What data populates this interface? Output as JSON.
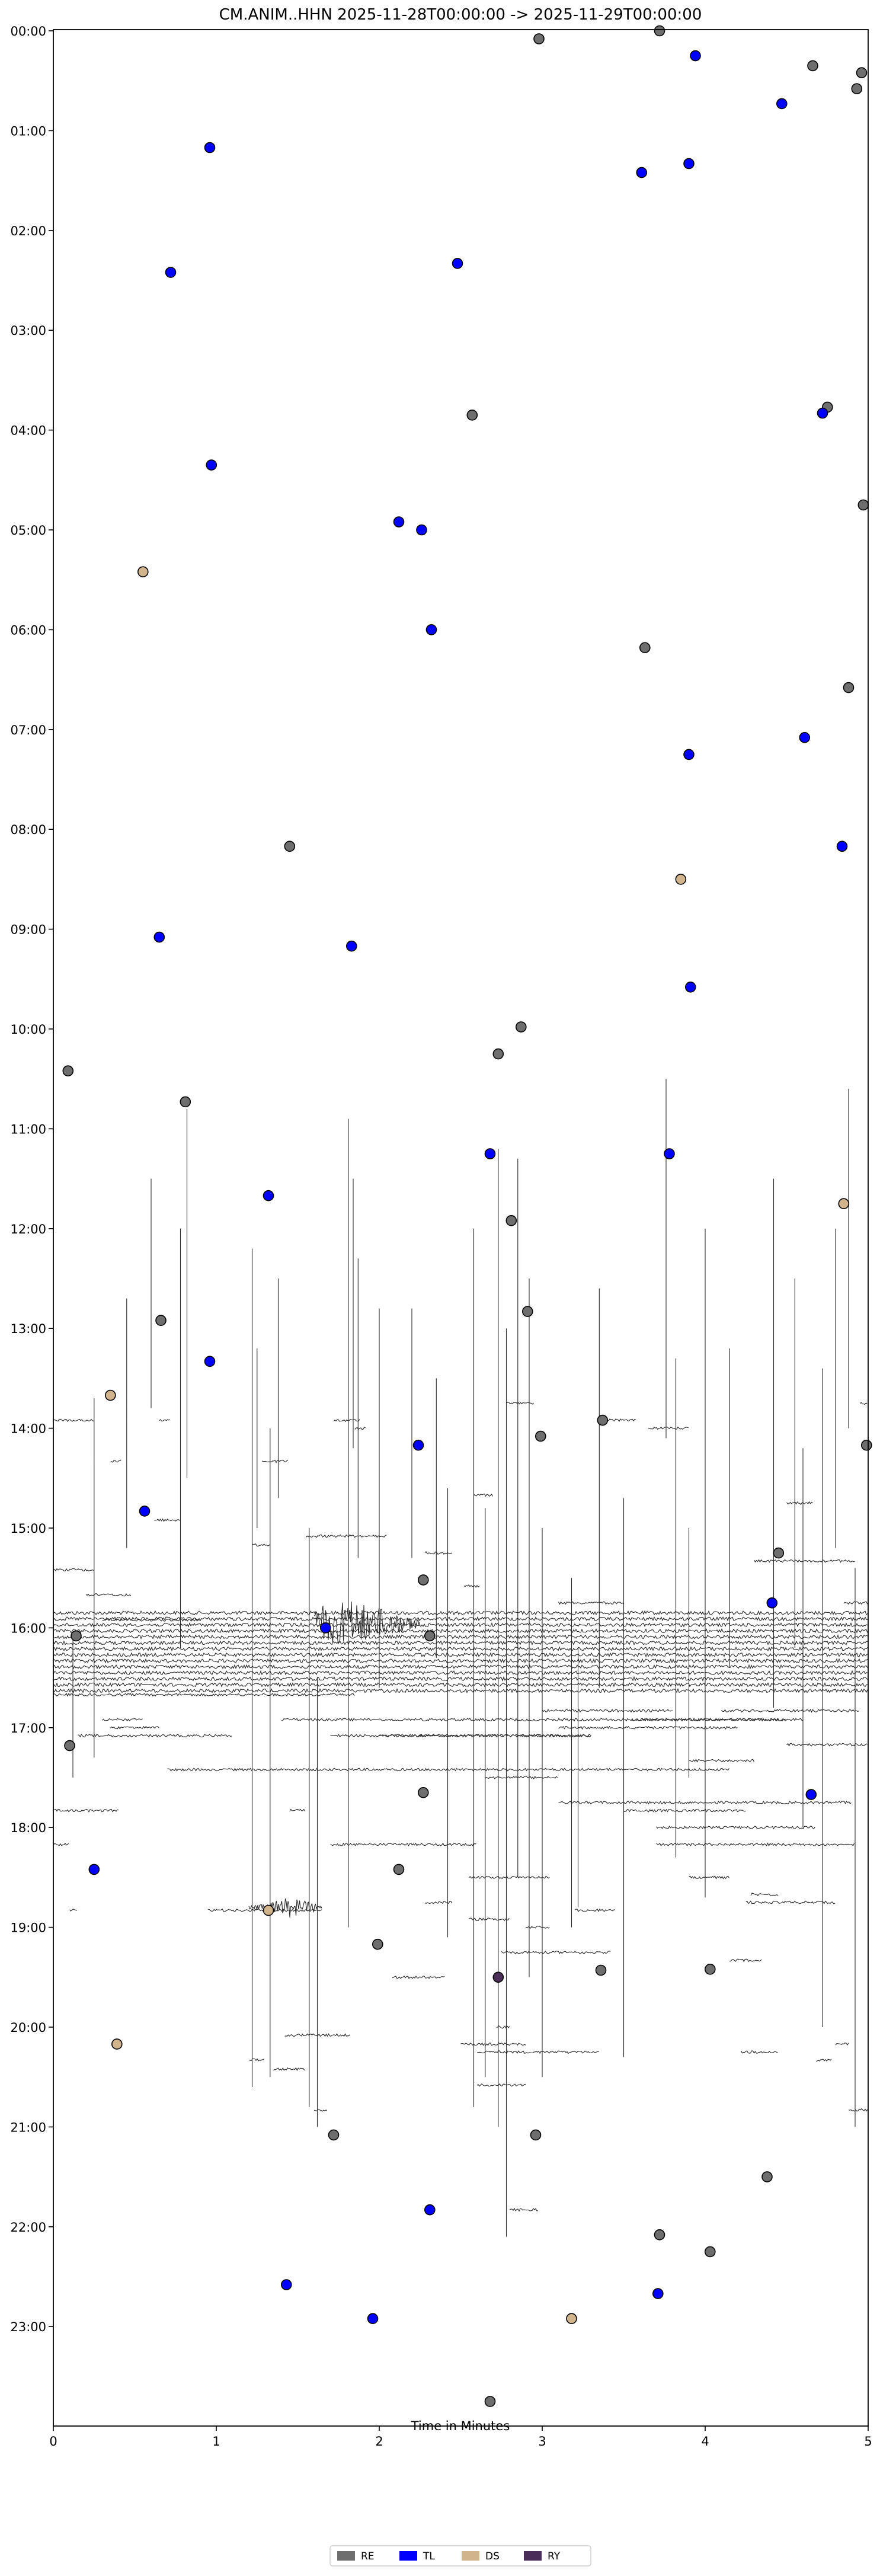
{
  "chart_data": {
    "type": "scatter",
    "title": "CM.ANIM..HHN  2025-11-28T00:00:00 -> 2025-11-29T00:00:00",
    "xlabel": "Time in Minutes",
    "ylabel": "",
    "xlim": [
      0,
      5
    ],
    "ylim_hours": [
      0,
      24
    ],
    "x_ticks": [
      0,
      1,
      2,
      3,
      4,
      5
    ],
    "x_tick_labels": [
      "0",
      "1",
      "2",
      "3",
      "4",
      "5"
    ],
    "y_ticks": [
      0,
      1,
      2,
      3,
      4,
      5,
      6,
      7,
      8,
      9,
      10,
      11,
      12,
      13,
      14,
      15,
      16,
      17,
      18,
      19,
      20,
      21,
      22,
      23
    ],
    "y_tick_labels": [
      "00:00",
      "01:00",
      "02:00",
      "03:00",
      "04:00",
      "05:00",
      "06:00",
      "07:00",
      "08:00",
      "09:00",
      "10:00",
      "11:00",
      "12:00",
      "13:00",
      "14:00",
      "15:00",
      "16:00",
      "17:00",
      "18:00",
      "19:00",
      "20:00",
      "21:00",
      "22:00",
      "23:00"
    ],
    "grid": false,
    "legend": {
      "placement": "bottom-center",
      "entries": [
        {
          "label": "RE",
          "color": "#6e6e6e"
        },
        {
          "label": "TL",
          "color": "#0000ff"
        },
        {
          "label": "DS",
          "color": "#d2b48c"
        },
        {
          "label": "RY",
          "color": "#4b2d5a"
        }
      ]
    },
    "series": [
      {
        "name": "RE",
        "color": "#6e6e6e",
        "points": [
          [
            3.72,
            0.0
          ],
          [
            2.98,
            0.08
          ],
          [
            4.66,
            0.35
          ],
          [
            4.96,
            0.42
          ],
          [
            4.93,
            0.58
          ],
          [
            2.57,
            3.85
          ],
          [
            4.75,
            3.77
          ],
          [
            4.97,
            4.75
          ],
          [
            3.63,
            6.18
          ],
          [
            4.88,
            6.58
          ],
          [
            1.45,
            8.17
          ],
          [
            2.87,
            9.98
          ],
          [
            2.73,
            10.25
          ],
          [
            0.09,
            10.42
          ],
          [
            0.81,
            10.73
          ],
          [
            2.81,
            11.92
          ],
          [
            0.66,
            12.92
          ],
          [
            2.91,
            12.83
          ],
          [
            3.37,
            13.92
          ],
          [
            2.99,
            14.08
          ],
          [
            4.99,
            14.17
          ],
          [
            4.45,
            15.25
          ],
          [
            2.27,
            15.52
          ],
          [
            0.14,
            16.08
          ],
          [
            2.31,
            16.08
          ],
          [
            0.1,
            17.18
          ],
          [
            2.27,
            17.65
          ],
          [
            2.12,
            18.42
          ],
          [
            1.99,
            19.17
          ],
          [
            3.36,
            19.43
          ],
          [
            4.03,
            19.42
          ],
          [
            1.72,
            21.08
          ],
          [
            2.96,
            21.08
          ],
          [
            4.38,
            21.5
          ],
          [
            3.72,
            22.08
          ],
          [
            4.03,
            22.25
          ],
          [
            2.68,
            23.75
          ]
        ]
      },
      {
        "name": "TL",
        "color": "#0000ff",
        "points": [
          [
            3.94,
            0.25
          ],
          [
            4.47,
            0.73
          ],
          [
            0.96,
            1.17
          ],
          [
            3.9,
            1.33
          ],
          [
            3.61,
            1.42
          ],
          [
            0.72,
            2.42
          ],
          [
            2.48,
            2.33
          ],
          [
            4.72,
            3.83
          ],
          [
            0.97,
            4.35
          ],
          [
            2.12,
            4.92
          ],
          [
            2.26,
            5.0
          ],
          [
            2.32,
            6.0
          ],
          [
            3.9,
            7.25
          ],
          [
            4.61,
            7.08
          ],
          [
            4.84,
            8.17
          ],
          [
            0.65,
            9.08
          ],
          [
            1.83,
            9.17
          ],
          [
            3.91,
            9.58
          ],
          [
            2.68,
            11.25
          ],
          [
            3.78,
            11.25
          ],
          [
            1.32,
            11.67
          ],
          [
            0.96,
            13.33
          ],
          [
            2.24,
            14.17
          ],
          [
            0.56,
            14.83
          ],
          [
            4.41,
            15.75
          ],
          [
            1.67,
            16.0
          ],
          [
            4.65,
            17.67
          ],
          [
            0.25,
            18.42
          ],
          [
            2.31,
            21.83
          ],
          [
            1.43,
            22.58
          ],
          [
            1.96,
            22.92
          ],
          [
            3.71,
            22.67
          ]
        ]
      },
      {
        "name": "DS",
        "color": "#d2b48c",
        "points": [
          [
            0.55,
            5.42
          ],
          [
            3.85,
            8.5
          ],
          [
            4.85,
            11.75
          ],
          [
            0.35,
            13.67
          ],
          [
            1.32,
            18.83
          ],
          [
            0.39,
            20.17
          ],
          [
            3.18,
            22.92
          ]
        ]
      },
      {
        "name": "RY",
        "color": "#4b2d5a",
        "points": [
          [
            2.73,
            19.5
          ]
        ]
      }
    ]
  }
}
